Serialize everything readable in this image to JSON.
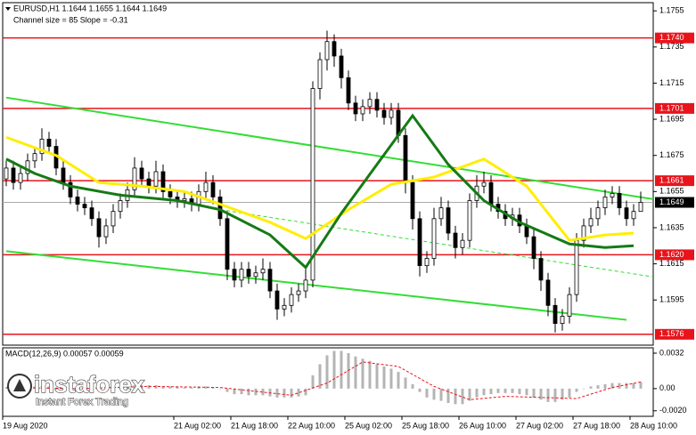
{
  "chart_data": {
    "type": "candlestick",
    "title": "EURUSD,H1  1.1644 1.1655 1.1644 1.1649",
    "subtitle": "Channel size = 85 Slope = -0.31",
    "ylim": [
      1.157,
      1.1761
    ],
    "yticks": [
      1.1755,
      1.1735,
      1.1715,
      1.1695,
      1.1675,
      1.1655,
      1.1635,
      1.1615,
      1.1595
    ],
    "levels": [
      {
        "value": 1.174,
        "label": "1.1740"
      },
      1.1701,
      1.1661,
      {
        "value": 1.162,
        "label": "1.1620"
      },
      1.1576
    ],
    "level_color": "#e8141c",
    "current": 1.1649,
    "x_labels": [
      "19 Aug 2020",
      "21 Aug 02:00",
      "21 Aug 18:00",
      "22 Aug 10:00",
      "25 Aug 02:00",
      "25 Aug 18:00",
      "26 Aug 10:00",
      "27 Aug 02:00",
      "27 Aug 18:00",
      "28 Aug 10:00"
    ],
    "candles": [
      [
        1.1662,
        1.1672,
        1.1658,
        1.1668
      ],
      [
        1.1668,
        1.1672,
        1.1656,
        1.166
      ],
      [
        1.166,
        1.1669,
        1.1656,
        1.1665
      ],
      [
        1.1665,
        1.1676,
        1.1661,
        1.1672
      ],
      [
        1.1672,
        1.168,
        1.1668,
        1.1676
      ],
      [
        1.1676,
        1.169,
        1.1672,
        1.1684
      ],
      [
        1.1684,
        1.1688,
        1.1676,
        1.168
      ],
      [
        1.168,
        1.1684,
        1.1664,
        1.1668
      ],
      [
        1.1668,
        1.1672,
        1.1656,
        1.166
      ],
      [
        1.166,
        1.1664,
        1.1648,
        1.1652
      ],
      [
        1.1652,
        1.1656,
        1.1644,
        1.1648
      ],
      [
        1.1648,
        1.1652,
        1.1642,
        1.1646
      ],
      [
        1.1646,
        1.165,
        1.1636,
        1.164
      ],
      [
        1.164,
        1.1644,
        1.1624,
        1.163
      ],
      [
        1.163,
        1.164,
        1.1626,
        1.1636
      ],
      [
        1.1636,
        1.1648,
        1.1632,
        1.1644
      ],
      [
        1.1644,
        1.1654,
        1.164,
        1.165
      ],
      [
        1.165,
        1.166,
        1.1646,
        1.1656
      ],
      [
        1.1656,
        1.1674,
        1.1652,
        1.1668
      ],
      [
        1.1668,
        1.1672,
        1.1658,
        1.1662
      ],
      [
        1.1662,
        1.1666,
        1.1654,
        1.1658
      ],
      [
        1.1658,
        1.1672,
        1.1654,
        1.1666
      ],
      [
        1.1666,
        1.167,
        1.1651,
        1.1655
      ],
      [
        1.1655,
        1.1659,
        1.1648,
        1.1652
      ],
      [
        1.1652,
        1.1656,
        1.1646,
        1.165
      ],
      [
        1.165,
        1.1655,
        1.1646,
        1.1651
      ],
      [
        1.1651,
        1.1655,
        1.1644,
        1.1648
      ],
      [
        1.1648,
        1.1659,
        1.1644,
        1.1655
      ],
      [
        1.1655,
        1.1666,
        1.1651,
        1.166
      ],
      [
        1.166,
        1.1664,
        1.1648,
        1.1652
      ],
      [
        1.1652,
        1.1656,
        1.1636,
        1.164
      ],
      [
        1.164,
        1.1644,
        1.1606,
        1.1612
      ],
      [
        1.1612,
        1.1616,
        1.1602,
        1.1606
      ],
      [
        1.1606,
        1.1616,
        1.1602,
        1.1612
      ],
      [
        1.1612,
        1.1616,
        1.1604,
        1.1608
      ],
      [
        1.1608,
        1.1614,
        1.1604,
        1.161
      ],
      [
        1.161,
        1.1618,
        1.1606,
        1.1612
      ],
      [
        1.1612,
        1.1616,
        1.1596,
        1.16
      ],
      [
        1.16,
        1.1604,
        1.1584,
        1.159
      ],
      [
        1.159,
        1.1596,
        1.1586,
        1.1592
      ],
      [
        1.1592,
        1.1602,
        1.1588,
        1.1598
      ],
      [
        1.1598,
        1.1604,
        1.1594,
        1.16
      ],
      [
        1.16,
        1.1612,
        1.1596,
        1.1606
      ],
      [
        1.1606,
        1.1716,
        1.1602,
        1.1712
      ],
      [
        1.1712,
        1.1732,
        1.1706,
        1.1728
      ],
      [
        1.1728,
        1.1744,
        1.1722,
        1.1738
      ],
      [
        1.1738,
        1.1742,
        1.1724,
        1.173
      ],
      [
        1.173,
        1.1734,
        1.1712,
        1.1718
      ],
      [
        1.1718,
        1.1722,
        1.17,
        1.1704
      ],
      [
        1.1704,
        1.1708,
        1.1694,
        1.1698
      ],
      [
        1.1698,
        1.1706,
        1.1694,
        1.1702
      ],
      [
        1.1702,
        1.171,
        1.1698,
        1.1706
      ],
      [
        1.1706,
        1.171,
        1.1696,
        1.17
      ],
      [
        1.17,
        1.1704,
        1.1692,
        1.1696
      ],
      [
        1.1696,
        1.1704,
        1.1692,
        1.17
      ],
      [
        1.17,
        1.1704,
        1.1682,
        1.1686
      ],
      [
        1.1686,
        1.169,
        1.1654,
        1.166
      ],
      [
        1.166,
        1.1664,
        1.1634,
        1.164
      ],
      [
        1.164,
        1.1644,
        1.1608,
        1.1614
      ],
      [
        1.1614,
        1.1622,
        1.161,
        1.1618
      ],
      [
        1.1618,
        1.1646,
        1.1614,
        1.164
      ],
      [
        1.164,
        1.1652,
        1.1636,
        1.1646
      ],
      [
        1.1646,
        1.165,
        1.1628,
        1.1632
      ],
      [
        1.1632,
        1.1636,
        1.1618,
        1.1624
      ],
      [
        1.1624,
        1.1632,
        1.162,
        1.1628
      ],
      [
        1.1628,
        1.1654,
        1.1624,
        1.165
      ],
      [
        1.165,
        1.1664,
        1.1646,
        1.1658
      ],
      [
        1.1658,
        1.1666,
        1.1654,
        1.166
      ],
      [
        1.166,
        1.1664,
        1.1644,
        1.1648
      ],
      [
        1.1648,
        1.1652,
        1.164,
        1.1644
      ],
      [
        1.1644,
        1.1648,
        1.1636,
        1.164
      ],
      [
        1.164,
        1.1646,
        1.1636,
        1.1642
      ],
      [
        1.1642,
        1.1646,
        1.1632,
        1.1636
      ],
      [
        1.1636,
        1.164,
        1.1626,
        1.163
      ],
      [
        1.163,
        1.1634,
        1.1612,
        1.1618
      ],
      [
        1.1618,
        1.1622,
        1.16,
        1.1606
      ],
      [
        1.1606,
        1.161,
        1.1586,
        1.1592
      ],
      [
        1.1592,
        1.1596,
        1.1577,
        1.1582
      ],
      [
        1.1582,
        1.159,
        1.1578,
        1.1586
      ],
      [
        1.1586,
        1.1602,
        1.1582,
        1.1598
      ],
      [
        1.1598,
        1.1632,
        1.1594,
        1.1628
      ],
      [
        1.1628,
        1.164,
        1.1624,
        1.1636
      ],
      [
        1.1636,
        1.1646,
        1.1632,
        1.164
      ],
      [
        1.164,
        1.165,
        1.1636,
        1.1646
      ],
      [
        1.1646,
        1.1656,
        1.1642,
        1.1652
      ],
      [
        1.1652,
        1.1658,
        1.1648,
        1.1654
      ],
      [
        1.1654,
        1.1658,
        1.1642,
        1.1646
      ],
      [
        1.1646,
        1.165,
        1.1636,
        1.164
      ],
      [
        1.164,
        1.1648,
        1.1636,
        1.1644
      ],
      [
        1.1644,
        1.1655,
        1.1644,
        1.1649
      ]
    ],
    "lines": [
      {
        "color": "#ffee00",
        "x": [
          0,
          7,
          13,
          19,
          25,
          30,
          37,
          42,
          48,
          54,
          60,
          67,
          73,
          79,
          84,
          88
        ],
        "values": [
          1.1685,
          1.1675,
          1.166,
          1.1658,
          1.1655,
          1.1648,
          1.1638,
          1.1629,
          1.1645,
          1.1659,
          1.1663,
          1.1673,
          1.1658,
          1.1628,
          1.1631,
          1.1632
        ]
      },
      {
        "color": "#157a15",
        "x": [
          0,
          4,
          9,
          16,
          24,
          30,
          37,
          42,
          47,
          52,
          57,
          62,
          67,
          72,
          79,
          84,
          88
        ],
        "values": [
          1.1673,
          1.1665,
          1.1658,
          1.1653,
          1.165,
          1.1645,
          1.1631,
          1.1613,
          1.1643,
          1.167,
          1.1697,
          1.167,
          1.165,
          1.1638,
          1.1626,
          1.1624,
          1.1625
        ]
      }
    ],
    "channel": [
      {
        "color": "#33dd33",
        "x": [
          0,
          92
        ],
        "values": [
          1.1707,
          1.165
        ]
      },
      {
        "color": "#33dd33",
        "x": [
          0,
          87
        ],
        "values": [
          1.1622,
          1.1584
        ]
      },
      {
        "color": "#33dd33",
        "dashed": true,
        "x": [
          30,
          92
        ],
        "values": [
          1.1645,
          1.1607
        ]
      }
    ],
    "macd": {
      "title": "MACD(12,26,9) 0.00057 0.00059",
      "ylim": [
        -0.0025,
        0.0036
      ],
      "yticks": [
        0.0032,
        {
          "value": 0,
          "label": "0.00"
        },
        {
          "value": -0.002,
          "label": "-0.0020"
        }
      ],
      "histogram": [
        0.0001,
        0.0001,
        0.0001,
        0.0002,
        0.0002,
        0.0002,
        0.0002,
        0.0001,
        0.0,
        -0.0001,
        -0.0001,
        -0.0002,
        -0.0002,
        -0.0002,
        -0.0001,
        0.0,
        0.0001,
        0.0002,
        0.0003,
        0.0003,
        0.0003,
        0.0003,
        0.0002,
        0.0002,
        0.0002,
        0.0001,
        0.0001,
        0.0002,
        0.0002,
        0.0001,
        0.0,
        -0.0003,
        -0.0005,
        -0.0005,
        -0.0006,
        -0.0006,
        -0.0006,
        -0.0007,
        -0.0008,
        -0.0008,
        -0.0008,
        -0.0007,
        -0.0006,
        0.0012,
        0.0022,
        0.003,
        0.0034,
        0.0034,
        0.0032,
        0.0029,
        0.0027,
        0.0025,
        0.0022,
        0.002,
        0.0018,
        0.0015,
        0.001,
        0.0004,
        -0.0003,
        -0.0008,
        -0.001,
        -0.0011,
        -0.0013,
        -0.0014,
        -0.0014,
        -0.0011,
        -0.0008,
        -0.0006,
        -0.0005,
        -0.0004,
        -0.0004,
        -0.0004,
        -0.0005,
        -0.0006,
        -0.0008,
        -0.001,
        -0.0012,
        -0.0012,
        -0.001,
        -0.0008,
        -0.0003,
        0.0,
        0.0002,
        0.0003,
        0.0004,
        0.0005,
        0.0005,
        0.0005,
        0.0005,
        0.0006
      ],
      "hist_color": "#b4b4b4",
      "signal": {
        "color": "#e8141c",
        "x": [
          0,
          10,
          20,
          30,
          40,
          45,
          50,
          55,
          60,
          65,
          70,
          75,
          80,
          85,
          89
        ],
        "values": [
          0.0001,
          0.0,
          0.0002,
          0.0001,
          -0.0006,
          0.0005,
          0.0024,
          0.002,
          0.0002,
          -0.001,
          -0.0007,
          -0.0008,
          -0.0009,
          0.0001,
          0.0006
        ]
      }
    }
  },
  "logo": {
    "name": "instaforex",
    "tagline": "Instant Forex Trading"
  }
}
